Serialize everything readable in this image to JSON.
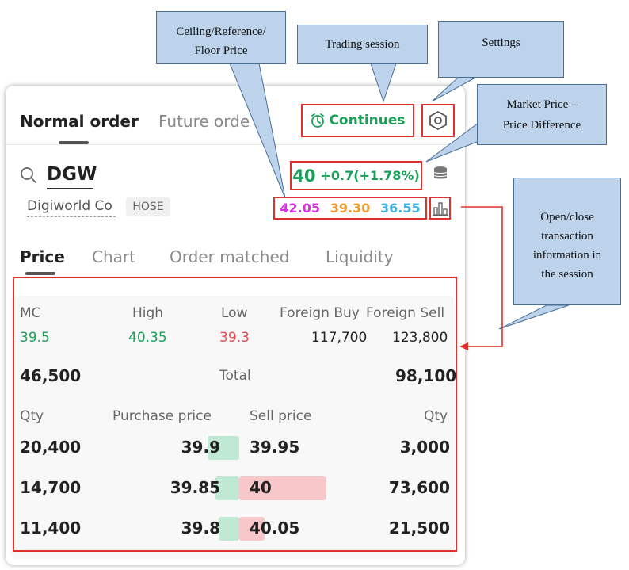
{
  "tabs": {
    "normal": "Normal order",
    "future": "Future orde"
  },
  "session": {
    "label": "Continues"
  },
  "stock": {
    "symbol": "DGW",
    "company": "Digiworld Co",
    "exchange": "HOSE",
    "price": "40",
    "change": "+0.7(+1.78%)",
    "ceiling": "42.05",
    "reference": "39.30",
    "floor": "36.55"
  },
  "subtabs": [
    "Price",
    "Chart",
    "Order matched",
    "Liquidity"
  ],
  "stats": {
    "headers": [
      "MC",
      "High",
      "Low",
      "Foreign Buy",
      "Foreign Sell"
    ],
    "values": [
      "39.5",
      "40.35",
      "39.3",
      "117,700",
      "123,800"
    ],
    "total_left": "46,500",
    "total_label": "Total",
    "total_right": "98,100"
  },
  "orderbook": {
    "headers": [
      "Qty",
      "Purchase price",
      "Sell price",
      "Qty"
    ],
    "rows": [
      {
        "bid_qty": "20,400",
        "bid_price": "39.9",
        "ask_price": "39.95",
        "ask_qty": "3,000",
        "bid_fill": 0.2,
        "ask_fill": 0.0
      },
      {
        "bid_qty": "14,700",
        "bid_price": "39.85",
        "ask_price": "40",
        "ask_qty": "73,600",
        "bid_fill": 0.15,
        "ask_fill": 1.0
      },
      {
        "bid_qty": "11,400",
        "bid_price": "39.8",
        "ask_price": "40.05",
        "ask_qty": "21,500",
        "bid_fill": 0.13,
        "ask_fill": 0.29
      }
    ]
  },
  "callouts": {
    "crf": [
      "Ceiling/Reference/",
      "Floor Price"
    ],
    "session": "Trading session",
    "settings": "Settings",
    "market": [
      "Market Price –",
      "Price Difference"
    ],
    "info": [
      "Open/close",
      "transaction",
      "information in",
      "the session"
    ]
  },
  "colors": {
    "green": "#18a058",
    "red": "#e5484d",
    "ceiling": "#d930e8",
    "reference": "#f59a2a",
    "floor": "#3fb4e5",
    "annotation": "#e0302b",
    "callout": "#bcd3eb"
  }
}
